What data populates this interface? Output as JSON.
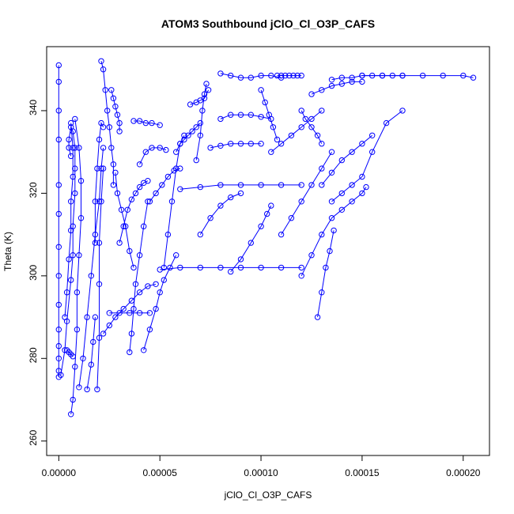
{
  "chart_data": {
    "type": "scatter",
    "title": "ATOM3 Southbound jClO_Cl_O3P_CAFS",
    "xlabel": "jClO_Cl_O3P_CAFS",
    "ylabel": "Theta (K)",
    "xlim": [
      -6e-06,
      0.000213
    ],
    "ylim": [
      256.5,
      355.5
    ],
    "xticks": [
      0.0,
      5e-05,
      0.0001,
      0.00015,
      0.0002
    ],
    "xtick_labels": [
      "0.00000",
      "0.00005",
      "0.00010",
      "0.00015",
      "0.00020"
    ],
    "yticks": [
      260,
      280,
      300,
      320,
      340
    ],
    "ytick_labels": [
      "260",
      "280",
      "300",
      "320",
      "340"
    ],
    "grid": false,
    "color": "#0000ff",
    "marker": "open-circle",
    "connect_points": true,
    "series": [
      {
        "x": [
          0.0,
          0.0,
          0.0,
          0.0,
          0.0,
          0.0,
          0.0,
          0.0,
          0.0,
          0.0,
          0.0,
          0.0,
          0.0,
          0.0
        ],
        "y": [
          351,
          347,
          340,
          333,
          322,
          315,
          307,
          300,
          293,
          287,
          283,
          280,
          277,
          275.5
        ]
      },
      {
        "x": [
          1e-06,
          3e-06,
          4e-06,
          6e-06,
          7e-06,
          7e-06,
          8e-06,
          8e-06,
          8e-06,
          7e-06,
          6e-06,
          5e-06,
          5e-06,
          6e-06
        ],
        "y": [
          276,
          282,
          289,
          299,
          305,
          312,
          320,
          326,
          331,
          335,
          336,
          333,
          331,
          329
        ]
      },
      {
        "x": [
          3e-06,
          4e-06,
          5e-06,
          6e-06,
          6e-06,
          7e-06,
          7e-06,
          6e-06
        ],
        "y": [
          290,
          296,
          304,
          311,
          318,
          324,
          331,
          337
        ]
      },
      {
        "x": [
          6e-06,
          7e-06,
          8e-06,
          9e-06,
          9e-06,
          1e-05,
          1.1e-05,
          1.1e-05,
          1e-05,
          8e-06
        ],
        "y": [
          266.5,
          270,
          278,
          287,
          296,
          305,
          314,
          323,
          331,
          338
        ]
      },
      {
        "x": [
          4e-06,
          5e-06,
          6e-06,
          7e-06
        ],
        "y": [
          282,
          281.5,
          281,
          280.5
        ]
      },
      {
        "x": [
          1e-05,
          1.2e-05,
          1.4e-05,
          1.6e-05,
          1.8e-05,
          2e-05,
          2.1e-05,
          2.2e-05
        ],
        "y": [
          273,
          280,
          290,
          300,
          310,
          318,
          326,
          331
        ]
      },
      {
        "x": [
          1.9e-05,
          2e-05,
          2e-05,
          2e-05,
          2.1e-05,
          2.2e-05
        ],
        "y": [
          272.5,
          285,
          298,
          308,
          318,
          326
        ]
      },
      {
        "x": [
          1.4e-05,
          1.6e-05,
          1.7e-05,
          1.8e-05
        ],
        "y": [
          272.5,
          278.5,
          284,
          290
        ]
      },
      {
        "x": [
          1.8e-05,
          1.8e-05,
          1.9e-05,
          2e-05,
          2.1e-05,
          2.2e-05
        ],
        "y": [
          308,
          318,
          326,
          333,
          337,
          336
        ]
      },
      {
        "x": [
          2.1e-05,
          2.2e-05,
          2.3e-05,
          2.4e-05,
          2.5e-05,
          2.6e-05,
          2.7e-05,
          2.7e-05
        ],
        "y": [
          352,
          350,
          345,
          340,
          336,
          331,
          327,
          322
        ]
      },
      {
        "x": [
          2.6e-05,
          2.7e-05,
          2.8e-05,
          2.9e-05,
          3e-05,
          3e-05
        ],
        "y": [
          345,
          343,
          341,
          339,
          337,
          335
        ]
      },
      {
        "x": [
          2.2e-05,
          2.5e-05,
          2.8e-05,
          3.2e-05,
          3.6e-05,
          4e-05,
          4.4e-05,
          4.8e-05
        ],
        "y": [
          286,
          288,
          290,
          292,
          294,
          296,
          297.5,
          298
        ]
      },
      {
        "x": [
          2.5e-05,
          3e-05,
          3.5e-05,
          4e-05,
          4.5e-05
        ],
        "y": [
          291,
          291,
          291,
          291,
          291
        ]
      },
      {
        "x": [
          2.8e-05,
          2.9e-05,
          3.1e-05,
          3.3e-05,
          3.5e-05,
          3.7e-05
        ],
        "y": [
          325,
          320,
          316,
          312,
          306,
          302
        ]
      },
      {
        "x": [
          3e-05,
          3.2e-05,
          3.4e-05,
          3.6e-05,
          3.8e-05,
          4e-05,
          4.2e-05,
          4.4e-05
        ],
        "y": [
          308,
          312,
          316,
          318.5,
          320,
          321.5,
          322.5,
          323
        ]
      },
      {
        "x": [
          3.5e-05,
          3.6e-05,
          3.7e-05,
          3.8e-05,
          4e-05,
          4.2e-05,
          4.4e-05
        ],
        "y": [
          281.5,
          286,
          292,
          298,
          305,
          312,
          318
        ]
      },
      {
        "x": [
          3.7e-05,
          4e-05,
          4.3e-05,
          4.6e-05,
          5e-05
        ],
        "y": [
          337.5,
          337.5,
          337,
          337,
          336.5
        ]
      },
      {
        "x": [
          4e-05,
          4.3e-05,
          4.6e-05,
          5e-05,
          5.3e-05
        ],
        "y": [
          327,
          330,
          331,
          331,
          330.5
        ]
      },
      {
        "x": [
          4.2e-05,
          4.5e-05,
          4.8e-05,
          5e-05,
          5.2e-05,
          5.5e-05,
          5.8e-05
        ],
        "y": [
          282,
          287,
          292,
          296,
          299,
          302,
          305
        ]
      },
      {
        "x": [
          4.5e-05,
          4.8e-05,
          5.1e-05,
          5.4e-05,
          5.7e-05,
          6e-05
        ],
        "y": [
          318,
          320,
          322,
          324,
          325.5,
          326
        ]
      },
      {
        "x": [
          5.2e-05,
          5.4e-05,
          5.6e-05,
          5.8e-05,
          6e-05,
          6.2e-05
        ],
        "y": [
          302,
          310,
          318,
          326,
          332,
          334
        ]
      },
      {
        "x": [
          5.8e-05,
          6e-05,
          6.2e-05,
          6.4e-05,
          6.6e-05,
          6.8e-05,
          7e-05
        ],
        "y": [
          330,
          332,
          333,
          334,
          335,
          336,
          337
        ]
      },
      {
        "x": [
          6.5e-05,
          6.8e-05,
          7e-05,
          7.2e-05,
          7.4e-05
        ],
        "y": [
          341.5,
          342,
          342.5,
          343,
          345
        ]
      },
      {
        "x": [
          6.8e-05,
          7e-05,
          7.1e-05,
          7.2e-05,
          7.3e-05
        ],
        "y": [
          328,
          334,
          340,
          344,
          346.5
        ]
      },
      {
        "x": [
          5e-05,
          6e-05,
          7e-05,
          8e-05,
          9e-05,
          0.0001,
          0.00011,
          0.00012
        ],
        "y": [
          301.5,
          302,
          302,
          302,
          302,
          302,
          302,
          302
        ]
      },
      {
        "x": [
          6e-05,
          7e-05,
          8e-05,
          9e-05,
          0.0001,
          0.00011,
          0.00012
        ],
        "y": [
          321,
          321.5,
          322,
          322,
          322,
          322,
          322
        ]
      },
      {
        "x": [
          7.5e-05,
          8e-05,
          8.5e-05,
          9e-05,
          9.5e-05,
          0.0001
        ],
        "y": [
          331,
          331.5,
          332,
          332,
          332,
          332
        ]
      },
      {
        "x": [
          7e-05,
          7.5e-05,
          8e-05,
          8.5e-05,
          9e-05
        ],
        "y": [
          310,
          314,
          317,
          319,
          320
        ]
      },
      {
        "x": [
          8e-05,
          8.5e-05,
          9e-05,
          9.5e-05,
          0.0001,
          0.000105
        ],
        "y": [
          338,
          339,
          339,
          339,
          338.5,
          338
        ]
      },
      {
        "x": [
          8e-05,
          8.5e-05,
          9e-05,
          9.5e-05,
          0.0001,
          0.000105,
          0.00011
        ],
        "y": [
          349,
          348.5,
          348,
          348,
          348.5,
          348.5,
          348
        ]
      },
      {
        "x": [
          8.5e-05,
          9e-05,
          9.5e-05,
          0.0001,
          0.000103,
          0.000105
        ],
        "y": [
          301,
          304,
          308,
          312,
          315,
          317
        ]
      },
      {
        "x": [
          0.0001,
          0.000102,
          0.000104,
          0.000106,
          0.000108
        ],
        "y": [
          345,
          342,
          339,
          336,
          333
        ]
      },
      {
        "x": [
          0.000108,
          0.00011,
          0.000112,
          0.000114,
          0.000116,
          0.000118,
          0.00012
        ],
        "y": [
          348.5,
          348.5,
          348.5,
          348.5,
          348.5,
          348.5,
          348.5
        ]
      },
      {
        "x": [
          0.000105,
          0.00011,
          0.000115,
          0.00012,
          0.000125,
          0.00013
        ],
        "y": [
          330,
          332,
          334,
          336,
          338,
          340
        ]
      },
      {
        "x": [
          0.00011,
          0.000115,
          0.00012,
          0.000125,
          0.00013,
          0.000135
        ],
        "y": [
          310,
          314,
          318,
          322,
          326,
          330
        ]
      },
      {
        "x": [
          0.00012,
          0.000122,
          0.000125,
          0.000128,
          0.00013
        ],
        "y": [
          340,
          338,
          336,
          334,
          332
        ]
      },
      {
        "x": [
          0.000125,
          0.00013,
          0.000135,
          0.00014,
          0.000145,
          0.00015
        ],
        "y": [
          344,
          345,
          346,
          346.5,
          347,
          347
        ]
      },
      {
        "x": [
          0.00013,
          0.000135,
          0.00014,
          0.000145,
          0.00015,
          0.000155
        ],
        "y": [
          322,
          325,
          328,
          330,
          332,
          334
        ]
      },
      {
        "x": [
          0.000135,
          0.00014,
          0.000145,
          0.00015,
          0.000155,
          0.00016,
          0.000165,
          0.00017
        ],
        "y": [
          347.5,
          348,
          348,
          348.5,
          348.5,
          348.5,
          348.5,
          348.5
        ]
      },
      {
        "x": [
          0.00015,
          0.00016,
          0.00017,
          0.00018,
          0.00019,
          0.0002,
          0.000205
        ],
        "y": [
          348.5,
          348.5,
          348.5,
          348.5,
          348.5,
          348.5,
          348
        ]
      },
      {
        "x": [
          0.000135,
          0.00014,
          0.000145,
          0.00015,
          0.000155,
          0.000162,
          0.00017
        ],
        "y": [
          318,
          320,
          322,
          324,
          330,
          337,
          340
        ]
      },
      {
        "x": [
          0.00012,
          0.000125,
          0.00013,
          0.000135,
          0.00014,
          0.000145,
          0.00015,
          0.000152
        ],
        "y": [
          300,
          305,
          310,
          314,
          316,
          318,
          320,
          321.5
        ]
      },
      {
        "x": [
          0.000128,
          0.00013,
          0.000132,
          0.000134,
          0.000136
        ],
        "y": [
          290,
          296,
          302,
          306,
          311
        ]
      }
    ]
  }
}
